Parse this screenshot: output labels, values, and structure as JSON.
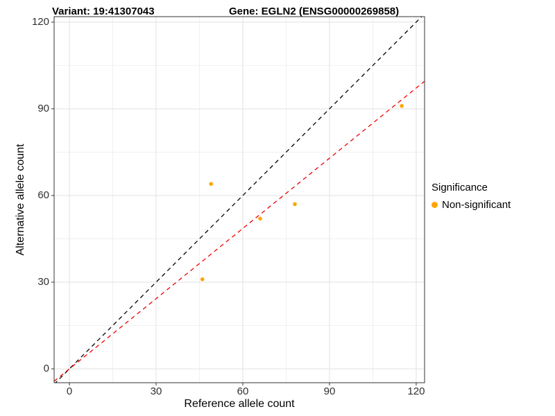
{
  "chart_data": {
    "type": "scatter",
    "title_left": "Variant: 19:41307043",
    "title_right": "Gene: EGLN2 (ENSG00000269858)",
    "xlabel": "Reference allele count",
    "ylabel": "Alternative allele count",
    "xlim": [
      -5.3,
      122.9
    ],
    "ylim": [
      -4.8,
      121.9
    ],
    "x_ticks": [
      0,
      30,
      60,
      90,
      120
    ],
    "y_ticks": [
      0,
      30,
      60,
      90,
      120
    ],
    "x_minor_ticks": [
      15,
      45,
      75,
      105
    ],
    "y_minor_ticks": [
      15,
      45,
      75,
      105
    ],
    "grid": true,
    "panel_border_color": "#333333",
    "major_grid_color": "#e2e2e2",
    "minor_grid_color": "#f0f0f0",
    "points": [
      {
        "x": 49,
        "y": 64,
        "group": "Non-significant"
      },
      {
        "x": 46,
        "y": 31,
        "group": "Non-significant"
      },
      {
        "x": 66,
        "y": 52,
        "group": "Non-significant"
      },
      {
        "x": 78,
        "y": 57,
        "group": "Non-significant"
      },
      {
        "x": 115,
        "y": 91,
        "group": "Non-significant"
      }
    ],
    "point_color": "#FFA500",
    "point_radius": 2.8,
    "lines": [
      {
        "name": "identity-line",
        "slope": 1,
        "intercept": 0,
        "color": "#000000",
        "style": "dashed"
      },
      {
        "name": "fit-line",
        "slope": 0.81,
        "intercept": 0,
        "color": "#EE0000",
        "style": "dashed"
      }
    ],
    "legend": {
      "title": "Significance",
      "position": "right",
      "items": [
        {
          "label": "Non-significant",
          "color": "#FFA500"
        }
      ]
    }
  }
}
